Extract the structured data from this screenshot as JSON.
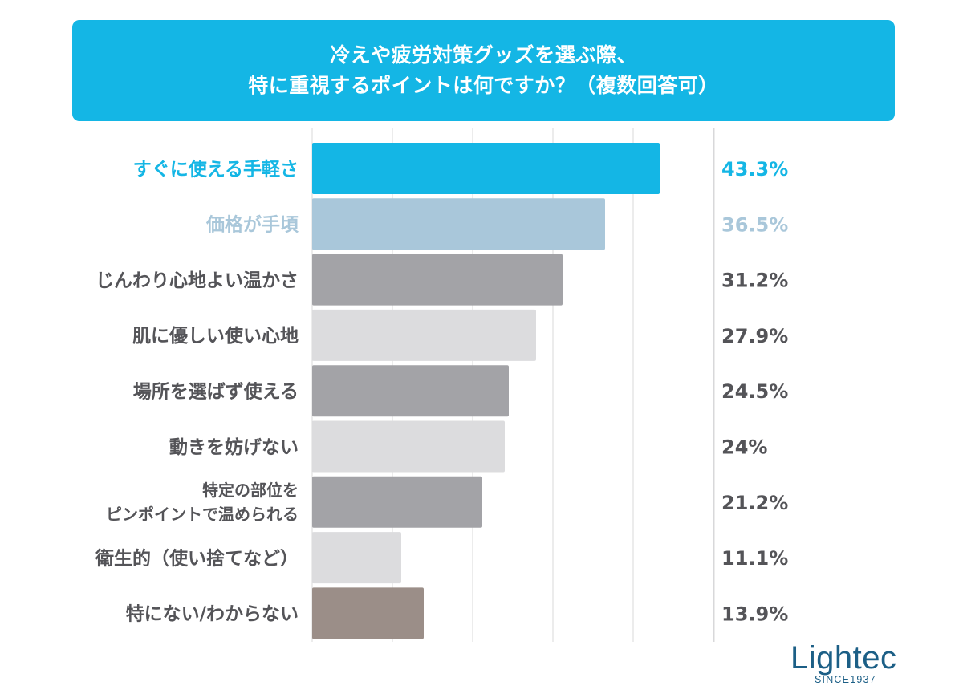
{
  "title": {
    "line1": "冷えや疲労対策グッズを選ぶ際、",
    "line2": "特に重視するポイントは何ですか？（複数回答可）"
  },
  "chart_data": {
    "type": "bar",
    "orientation": "horizontal",
    "categories": [
      [
        "すぐに使える手軽さ"
      ],
      [
        "価格が手頃"
      ],
      [
        "じんわり心地よい温かさ"
      ],
      [
        "肌に優しい使い心地"
      ],
      [
        "場所を選ばず使える"
      ],
      [
        "動きを妨げない"
      ],
      [
        "特定の部位を",
        "ピンポイントで温められる"
      ],
      [
        "衛生的（使い捨てなど）"
      ],
      [
        "特にない/わからない"
      ]
    ],
    "values": [
      43.3,
      36.5,
      31.2,
      27.9,
      24.5,
      24,
      21.2,
      11.1,
      13.9
    ],
    "value_labels": [
      "43.3%",
      "36.5%",
      "31.2%",
      "27.9%",
      "24.5%",
      "24%",
      "21.2%",
      "11.1%",
      "13.9%"
    ],
    "bar_colors": [
      "#14b6e5",
      "#a9c7da",
      "#a3a3a7",
      "#dcdcde",
      "#a3a3a7",
      "#dcdcde",
      "#a3a3a7",
      "#dcdcde",
      "#9b8e88"
    ],
    "label_colors": [
      "#14b6e5",
      "#a9c7da",
      "#545458",
      "#545458",
      "#545458",
      "#545458",
      "#545458",
      "#545458",
      "#545458"
    ],
    "xlim": [
      0,
      50
    ],
    "grid": true,
    "legend": "none"
  },
  "logo": {
    "name": "Lightec",
    "tagline": "SINCE1937"
  }
}
